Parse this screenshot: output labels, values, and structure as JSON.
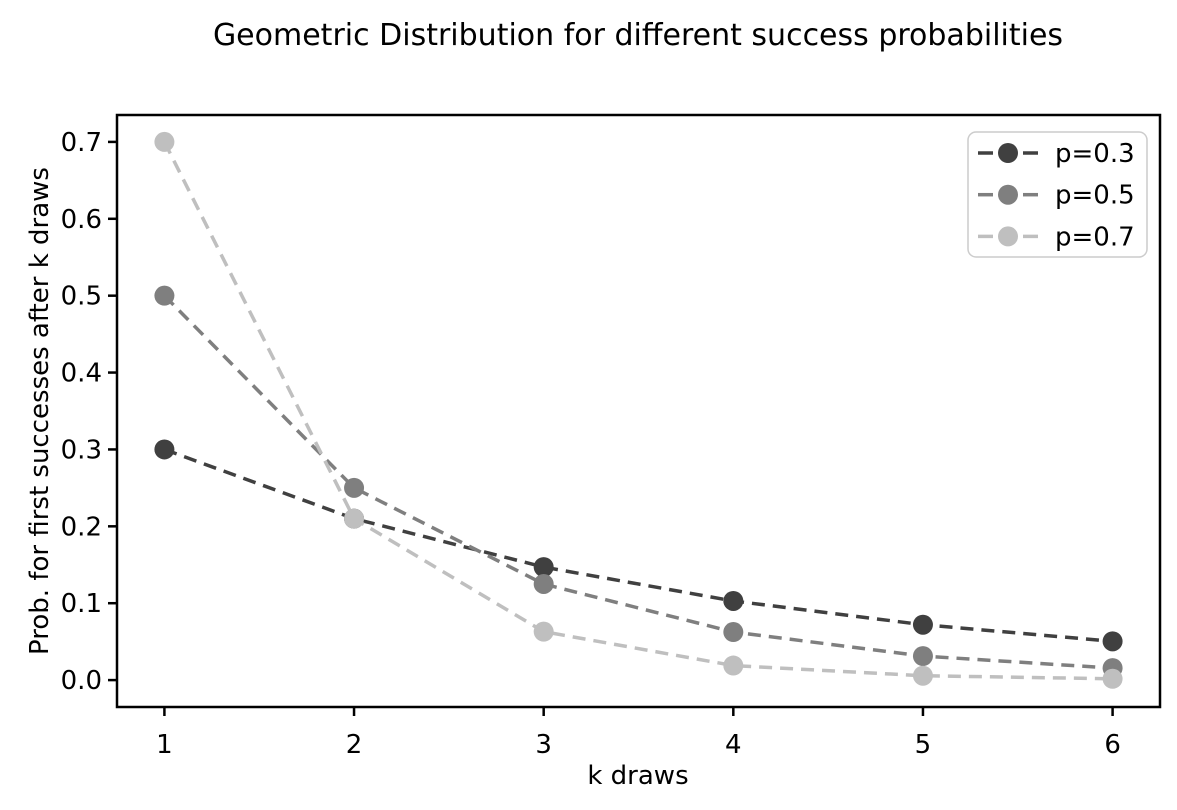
{
  "figure": {
    "background": "#ffffff",
    "axes_color": "#000000"
  },
  "chart_data": {
    "type": "line",
    "title": "Geometric Distribution for different success probabilities",
    "xlabel": "k draws",
    "ylabel": "Prob. for first successes after k draws",
    "x": [
      1,
      2,
      3,
      4,
      5,
      6
    ],
    "series": [
      {
        "name": "p=0.3",
        "color": "#404040",
        "values": [
          0.3,
          0.21,
          0.147,
          0.1029,
          0.07203,
          0.050421
        ]
      },
      {
        "name": "p=0.5",
        "color": "#7f7f7f",
        "values": [
          0.5,
          0.25,
          0.125,
          0.0625,
          0.03125,
          0.015625
        ]
      },
      {
        "name": "p=0.7",
        "color": "#bfbfbf",
        "values": [
          0.7,
          0.21,
          0.063,
          0.0189,
          0.00567,
          0.001701
        ]
      }
    ],
    "line_style": "dashed",
    "marker": "circle",
    "grid": false,
    "xlim": [
      0.75,
      6.25
    ],
    "ylim": [
      -0.035,
      0.735
    ],
    "xticks": [
      1,
      2,
      3,
      4,
      5,
      6
    ],
    "xtick_labels": [
      "1",
      "2",
      "3",
      "4",
      "5",
      "6"
    ],
    "yticks": [
      0.0,
      0.1,
      0.2,
      0.3,
      0.4,
      0.5,
      0.6,
      0.7
    ],
    "ytick_labels": [
      "0.0",
      "0.1",
      "0.2",
      "0.3",
      "0.4",
      "0.5",
      "0.6",
      "0.7"
    ],
    "legend": {
      "position": "upper right",
      "entries": [
        "p=0.3",
        "p=0.5",
        "p=0.7"
      ],
      "border_color": "#cccccc",
      "background": "#ffffff"
    }
  }
}
